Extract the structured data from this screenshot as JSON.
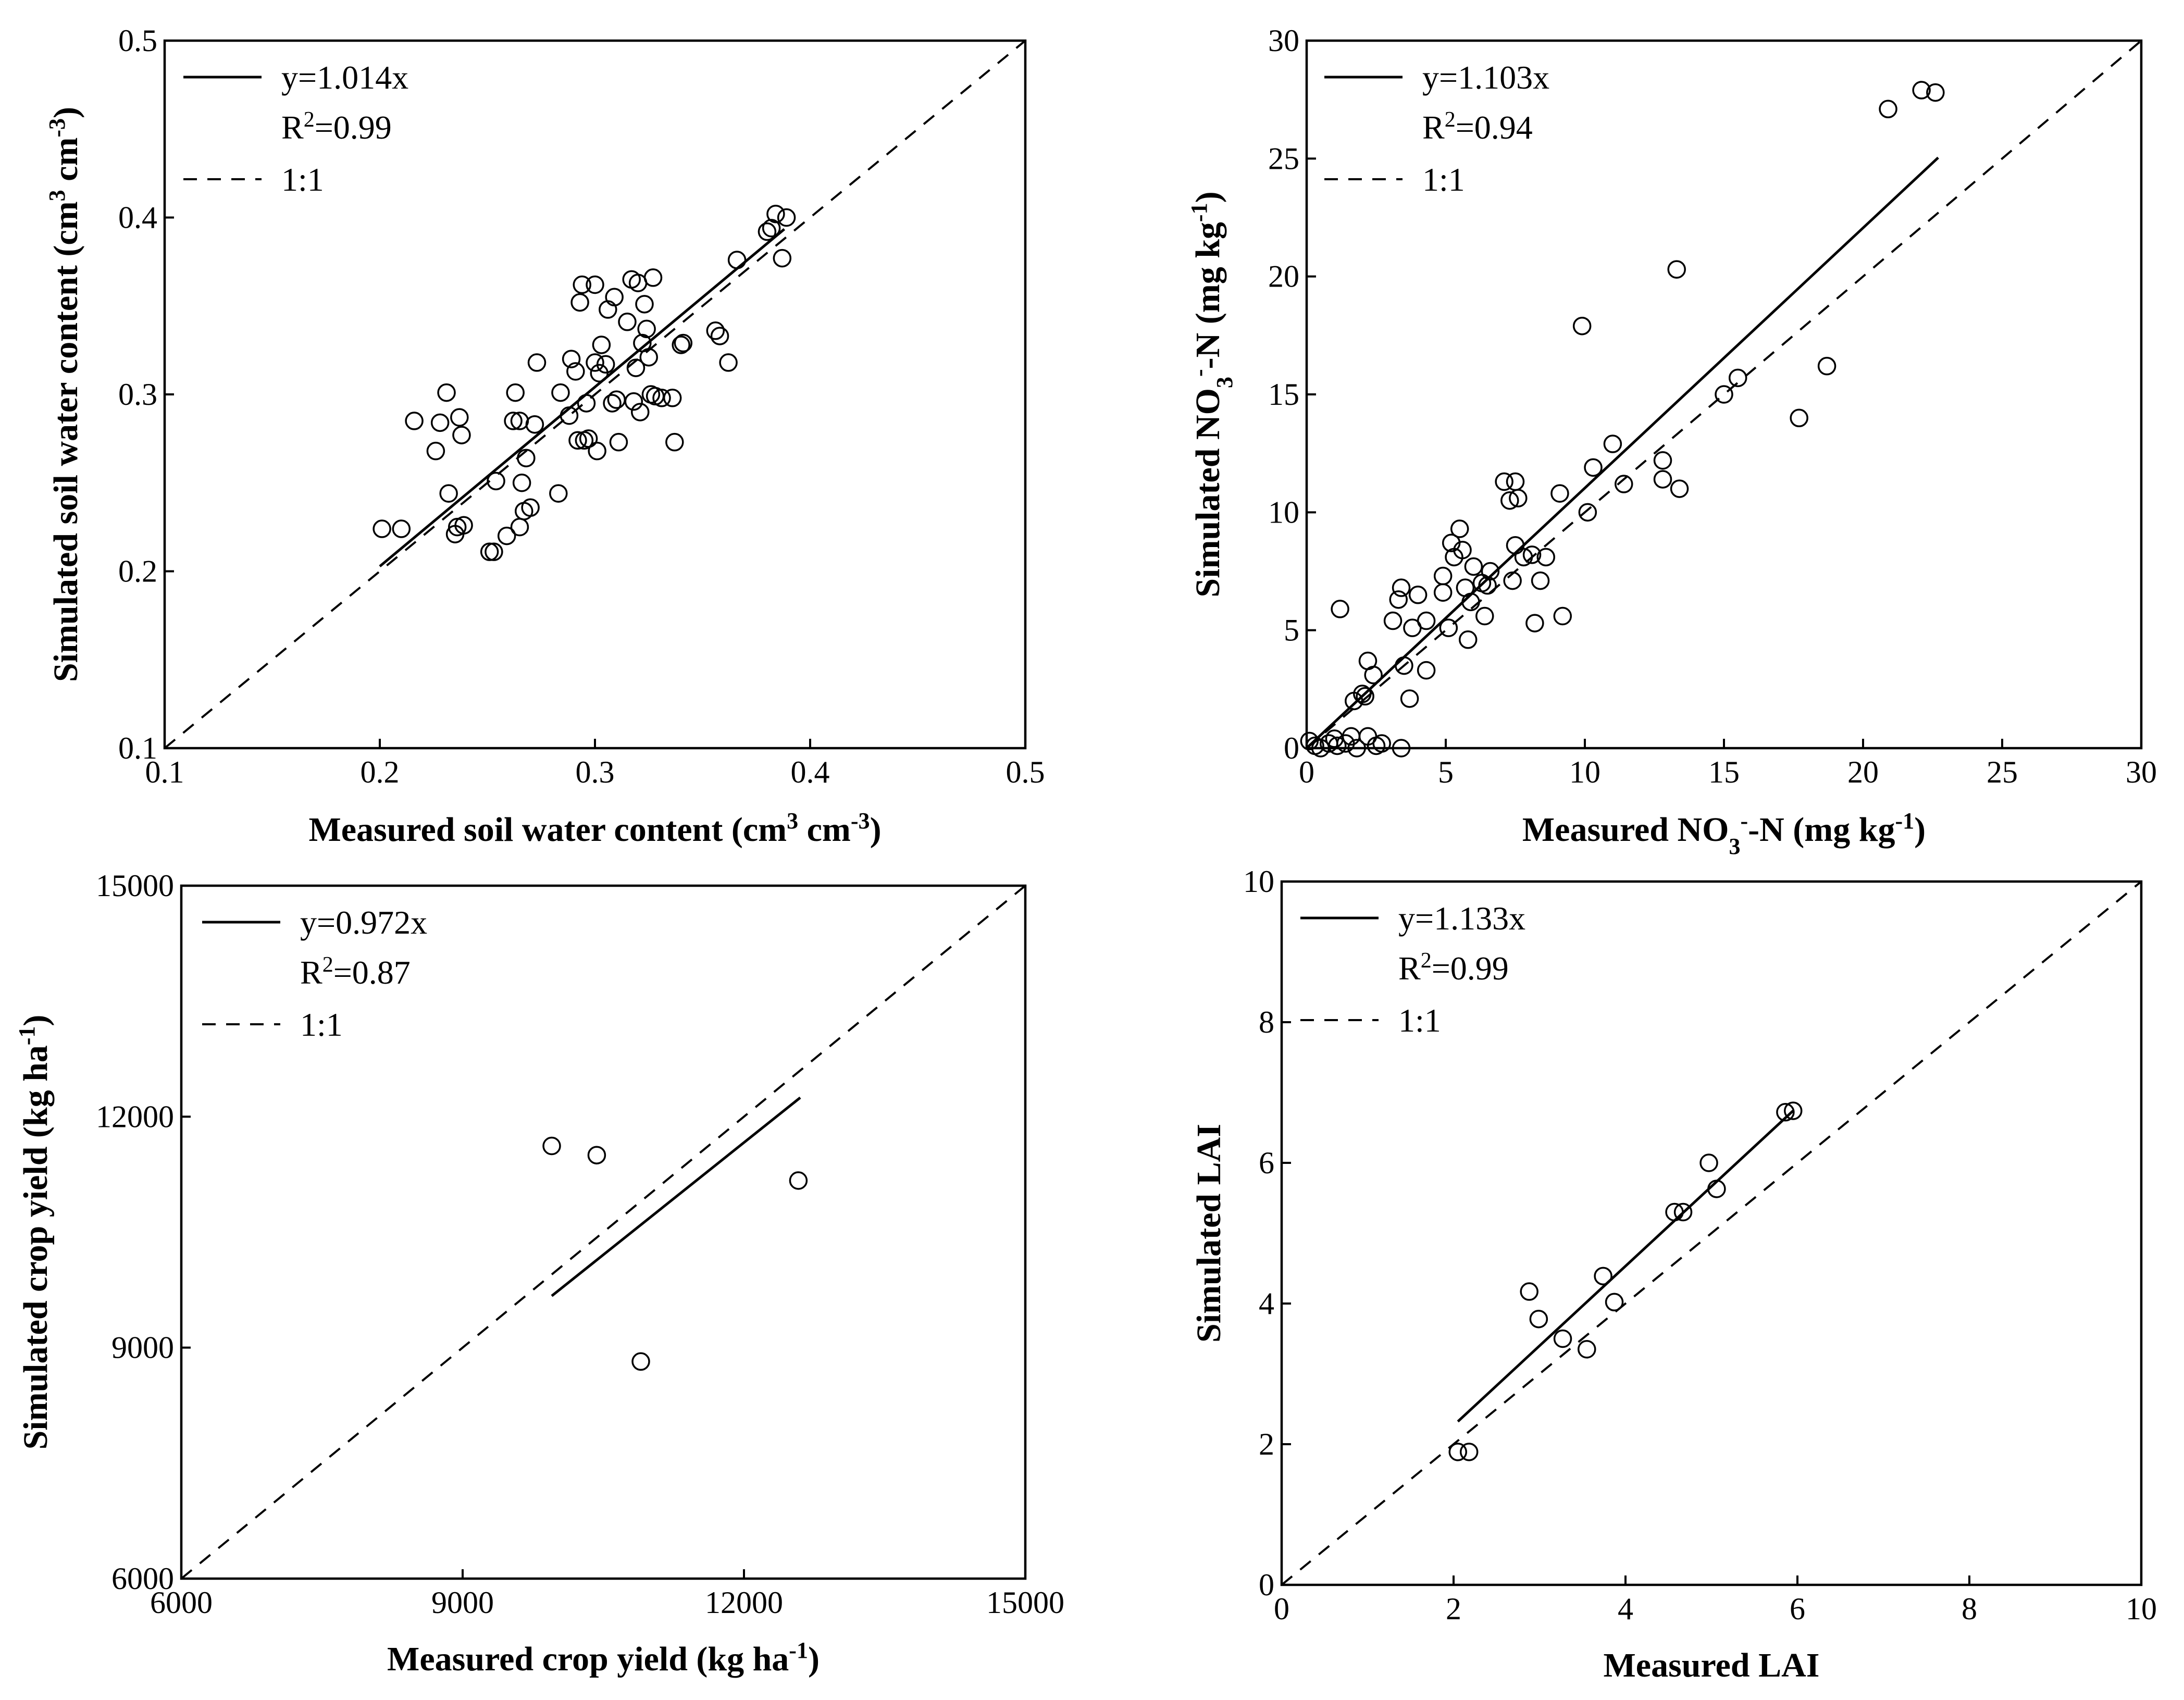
{
  "chart_data": [
    {
      "type": "scatter",
      "id": "swc",
      "xlabel": {
        "pre": "Measured soil water content (cm",
        "sup1": "3",
        "mid": " cm",
        "sup2": "-3",
        "post": ")"
      },
      "ylabel": {
        "pre": "Simulated soil water content (cm",
        "sup1": "3",
        "mid": " cm",
        "sup2": "-3",
        "post": ")"
      },
      "xlim": [
        0.1,
        0.5
      ],
      "ylim": [
        0.1,
        0.5
      ],
      "xticks": [
        "0.1",
        "0.2",
        "0.3",
        "0.4",
        "0.5"
      ],
      "yticks": [
        "0.1",
        "0.2",
        "0.3",
        "0.4",
        "0.5"
      ],
      "legend": {
        "fit": "y=1.014x",
        "r2_pre": "R",
        "r2_sup": "2",
        "r2_post": "=0.99",
        "one": "1:1"
      },
      "fit": {
        "slope": 1.014,
        "x_range": [
          0.2,
          0.388
        ]
      },
      "points": [
        [
          0.201,
          0.224
        ],
        [
          0.21,
          0.224
        ],
        [
          0.216,
          0.285
        ],
        [
          0.226,
          0.268
        ],
        [
          0.228,
          0.284
        ],
        [
          0.231,
          0.301
        ],
        [
          0.232,
          0.244
        ],
        [
          0.235,
          0.221
        ],
        [
          0.236,
          0.225
        ],
        [
          0.237,
          0.287
        ],
        [
          0.238,
          0.277
        ],
        [
          0.239,
          0.226
        ],
        [
          0.251,
          0.211
        ],
        [
          0.253,
          0.211
        ],
        [
          0.254,
          0.251
        ],
        [
          0.259,
          0.22
        ],
        [
          0.262,
          0.285
        ],
        [
          0.263,
          0.301
        ],
        [
          0.265,
          0.285
        ],
        [
          0.265,
          0.225
        ],
        [
          0.266,
          0.25
        ],
        [
          0.267,
          0.234
        ],
        [
          0.268,
          0.264
        ],
        [
          0.27,
          0.236
        ],
        [
          0.272,
          0.283
        ],
        [
          0.273,
          0.318
        ],
        [
          0.283,
          0.244
        ],
        [
          0.284,
          0.301
        ],
        [
          0.288,
          0.288
        ],
        [
          0.289,
          0.32
        ],
        [
          0.291,
          0.313
        ],
        [
          0.292,
          0.274
        ],
        [
          0.293,
          0.352
        ],
        [
          0.294,
          0.362
        ],
        [
          0.295,
          0.274
        ],
        [
          0.296,
          0.295
        ],
        [
          0.297,
          0.275
        ],
        [
          0.3,
          0.362
        ],
        [
          0.3,
          0.318
        ],
        [
          0.301,
          0.268
        ],
        [
          0.302,
          0.312
        ],
        [
          0.303,
          0.328
        ],
        [
          0.305,
          0.317
        ],
        [
          0.306,
          0.348
        ],
        [
          0.308,
          0.295
        ],
        [
          0.309,
          0.355
        ],
        [
          0.31,
          0.297
        ],
        [
          0.311,
          0.273
        ],
        [
          0.315,
          0.341
        ],
        [
          0.317,
          0.365
        ],
        [
          0.318,
          0.296
        ],
        [
          0.319,
          0.315
        ],
        [
          0.32,
          0.363
        ],
        [
          0.321,
          0.29
        ],
        [
          0.322,
          0.329
        ],
        [
          0.323,
          0.351
        ],
        [
          0.324,
          0.337
        ],
        [
          0.325,
          0.321
        ],
        [
          0.326,
          0.3
        ],
        [
          0.327,
          0.366
        ],
        [
          0.328,
          0.299
        ],
        [
          0.331,
          0.298
        ],
        [
          0.336,
          0.298
        ],
        [
          0.337,
          0.273
        ],
        [
          0.34,
          0.328
        ],
        [
          0.341,
          0.329
        ],
        [
          0.356,
          0.336
        ],
        [
          0.358,
          0.333
        ],
        [
          0.362,
          0.318
        ],
        [
          0.366,
          0.376
        ],
        [
          0.38,
          0.392
        ],
        [
          0.382,
          0.394
        ],
        [
          0.384,
          0.402
        ],
        [
          0.387,
          0.377
        ],
        [
          0.389,
          0.4
        ]
      ]
    },
    {
      "type": "scatter",
      "id": "no3",
      "xlabel": {
        "pre": "Measured NO",
        "sub": "3",
        "sup": "-",
        "post": "-N (mg kg",
        "sup2": "-1",
        "post2": ")"
      },
      "ylabel": {
        "pre": "Simulated NO",
        "sub": "3",
        "sup": "-",
        "post": "-N (mg kg",
        "sup2": "-1",
        "post2": ")"
      },
      "xlim": [
        0,
        30
      ],
      "ylim": [
        0,
        30
      ],
      "xticks": [
        "0",
        "5",
        "10",
        "15",
        "20",
        "25",
        "30"
      ],
      "yticks": [
        "0",
        "5",
        "10",
        "15",
        "20",
        "25",
        "30"
      ],
      "legend": {
        "fit": "y=1.103x",
        "r2_pre": "R",
        "r2_sup": "2",
        "r2_post": "=0.94",
        "one": "1:1"
      },
      "fit": {
        "slope": 1.103,
        "x_range": [
          0,
          22.7
        ]
      },
      "points": [
        [
          0.1,
          0.3
        ],
        [
          0.3,
          0.1
        ],
        [
          0.5,
          0
        ],
        [
          0.8,
          0.2
        ],
        [
          1.0,
          0.4
        ],
        [
          1.1,
          0.1
        ],
        [
          1.2,
          5.9
        ],
        [
          1.4,
          0.2
        ],
        [
          1.6,
          0.5
        ],
        [
          1.8,
          0
        ],
        [
          1.7,
          2.0
        ],
        [
          2.0,
          2.3
        ],
        [
          2.1,
          2.2
        ],
        [
          2.2,
          0.5
        ],
        [
          2.2,
          3.7
        ],
        [
          2.4,
          3.1
        ],
        [
          2.5,
          0.1
        ],
        [
          2.7,
          0.2
        ],
        [
          3.1,
          5.4
        ],
        [
          3.3,
          6.3
        ],
        [
          3.4,
          6.8
        ],
        [
          3.4,
          0
        ],
        [
          3.5,
          3.5
        ],
        [
          3.7,
          2.1
        ],
        [
          3.8,
          5.1
        ],
        [
          4.0,
          6.5
        ],
        [
          4.3,
          5.4
        ],
        [
          4.3,
          3.3
        ],
        [
          4.9,
          7.3
        ],
        [
          4.9,
          6.6
        ],
        [
          5.1,
          5.1
        ],
        [
          5.2,
          8.7
        ],
        [
          5.3,
          8.1
        ],
        [
          5.5,
          9.3
        ],
        [
          5.6,
          8.4
        ],
        [
          5.7,
          6.8
        ],
        [
          5.8,
          4.6
        ],
        [
          5.9,
          6.2
        ],
        [
          6.0,
          7.7
        ],
        [
          6.3,
          7.0
        ],
        [
          6.4,
          5.6
        ],
        [
          6.5,
          6.9
        ],
        [
          6.6,
          7.5
        ],
        [
          7.1,
          11.3
        ],
        [
          7.3,
          10.5
        ],
        [
          7.4,
          7.1
        ],
        [
          7.5,
          11.3
        ],
        [
          7.5,
          8.6
        ],
        [
          7.6,
          10.6
        ],
        [
          7.8,
          8.1
        ],
        [
          8.1,
          8.2
        ],
        [
          8.2,
          5.3
        ],
        [
          8.4,
          7.1
        ],
        [
          8.6,
          8.1
        ],
        [
          9.1,
          10.8
        ],
        [
          9.2,
          5.6
        ],
        [
          9.9,
          17.9
        ],
        [
          10.1,
          10.0
        ],
        [
          10.3,
          11.9
        ],
        [
          11.0,
          12.9
        ],
        [
          11.4,
          11.2
        ],
        [
          12.8,
          12.2
        ],
        [
          12.8,
          11.4
        ],
        [
          13.3,
          20.3
        ],
        [
          13.4,
          11.0
        ],
        [
          15.0,
          15.0
        ],
        [
          15.5,
          15.7
        ],
        [
          17.7,
          14.0
        ],
        [
          18.7,
          16.2
        ],
        [
          20.9,
          27.1
        ],
        [
          22.1,
          27.9
        ],
        [
          22.6,
          27.8
        ]
      ]
    },
    {
      "type": "scatter",
      "id": "yield",
      "xlabel": {
        "pre": "Measured crop yield (kg ha",
        "sup": "-1",
        "post": ")"
      },
      "ylabel": {
        "pre": "Simulated crop yield (kg ha",
        "sup": "-1",
        "post": ")"
      },
      "xlim": [
        6000,
        15000
      ],
      "ylim": [
        6000,
        15000
      ],
      "xticks": [
        "6000",
        "9000",
        "12000",
        "15000"
      ],
      "yticks": [
        "6000",
        "9000",
        "12000",
        "15000"
      ],
      "legend": {
        "fit": "y=0.972x",
        "r2_pre": "R",
        "r2_sup": "2",
        "r2_post": "=0.87",
        "one": "1:1"
      },
      "fit": {
        "slope": 0.972,
        "x_range": [
          9950,
          12600
        ]
      },
      "points": [
        [
          9950,
          11620
        ],
        [
          10430,
          11500
        ],
        [
          10900,
          8820
        ],
        [
          12580,
          11170
        ]
      ]
    },
    {
      "type": "scatter",
      "id": "lai",
      "xlabel": {
        "pre": "Measured LAI"
      },
      "ylabel": {
        "pre": "Simulated LAI"
      },
      "xlim": [
        0,
        10
      ],
      "ylim": [
        0,
        10
      ],
      "xticks": [
        "0",
        "2",
        "4",
        "6",
        "8",
        "10"
      ],
      "yticks": [
        "0",
        "2",
        "4",
        "6",
        "8",
        "10"
      ],
      "legend": {
        "fit": "y=1.133x",
        "r2_pre": "R",
        "r2_sup": "2",
        "r2_post": "=0.99",
        "one": "1:1"
      },
      "fit": {
        "slope": 1.133,
        "x_range": [
          2.05,
          5.95
        ]
      },
      "points": [
        [
          2.05,
          1.89
        ],
        [
          2.18,
          1.89
        ],
        [
          2.88,
          4.17
        ],
        [
          2.99,
          3.78
        ],
        [
          3.27,
          3.5
        ],
        [
          3.55,
          3.35
        ],
        [
          3.74,
          4.39
        ],
        [
          3.87,
          4.02
        ],
        [
          4.57,
          5.3
        ],
        [
          4.67,
          5.3
        ],
        [
          4.97,
          6.0
        ],
        [
          5.06,
          5.63
        ],
        [
          5.86,
          6.72
        ],
        [
          5.95,
          6.74
        ]
      ]
    }
  ]
}
